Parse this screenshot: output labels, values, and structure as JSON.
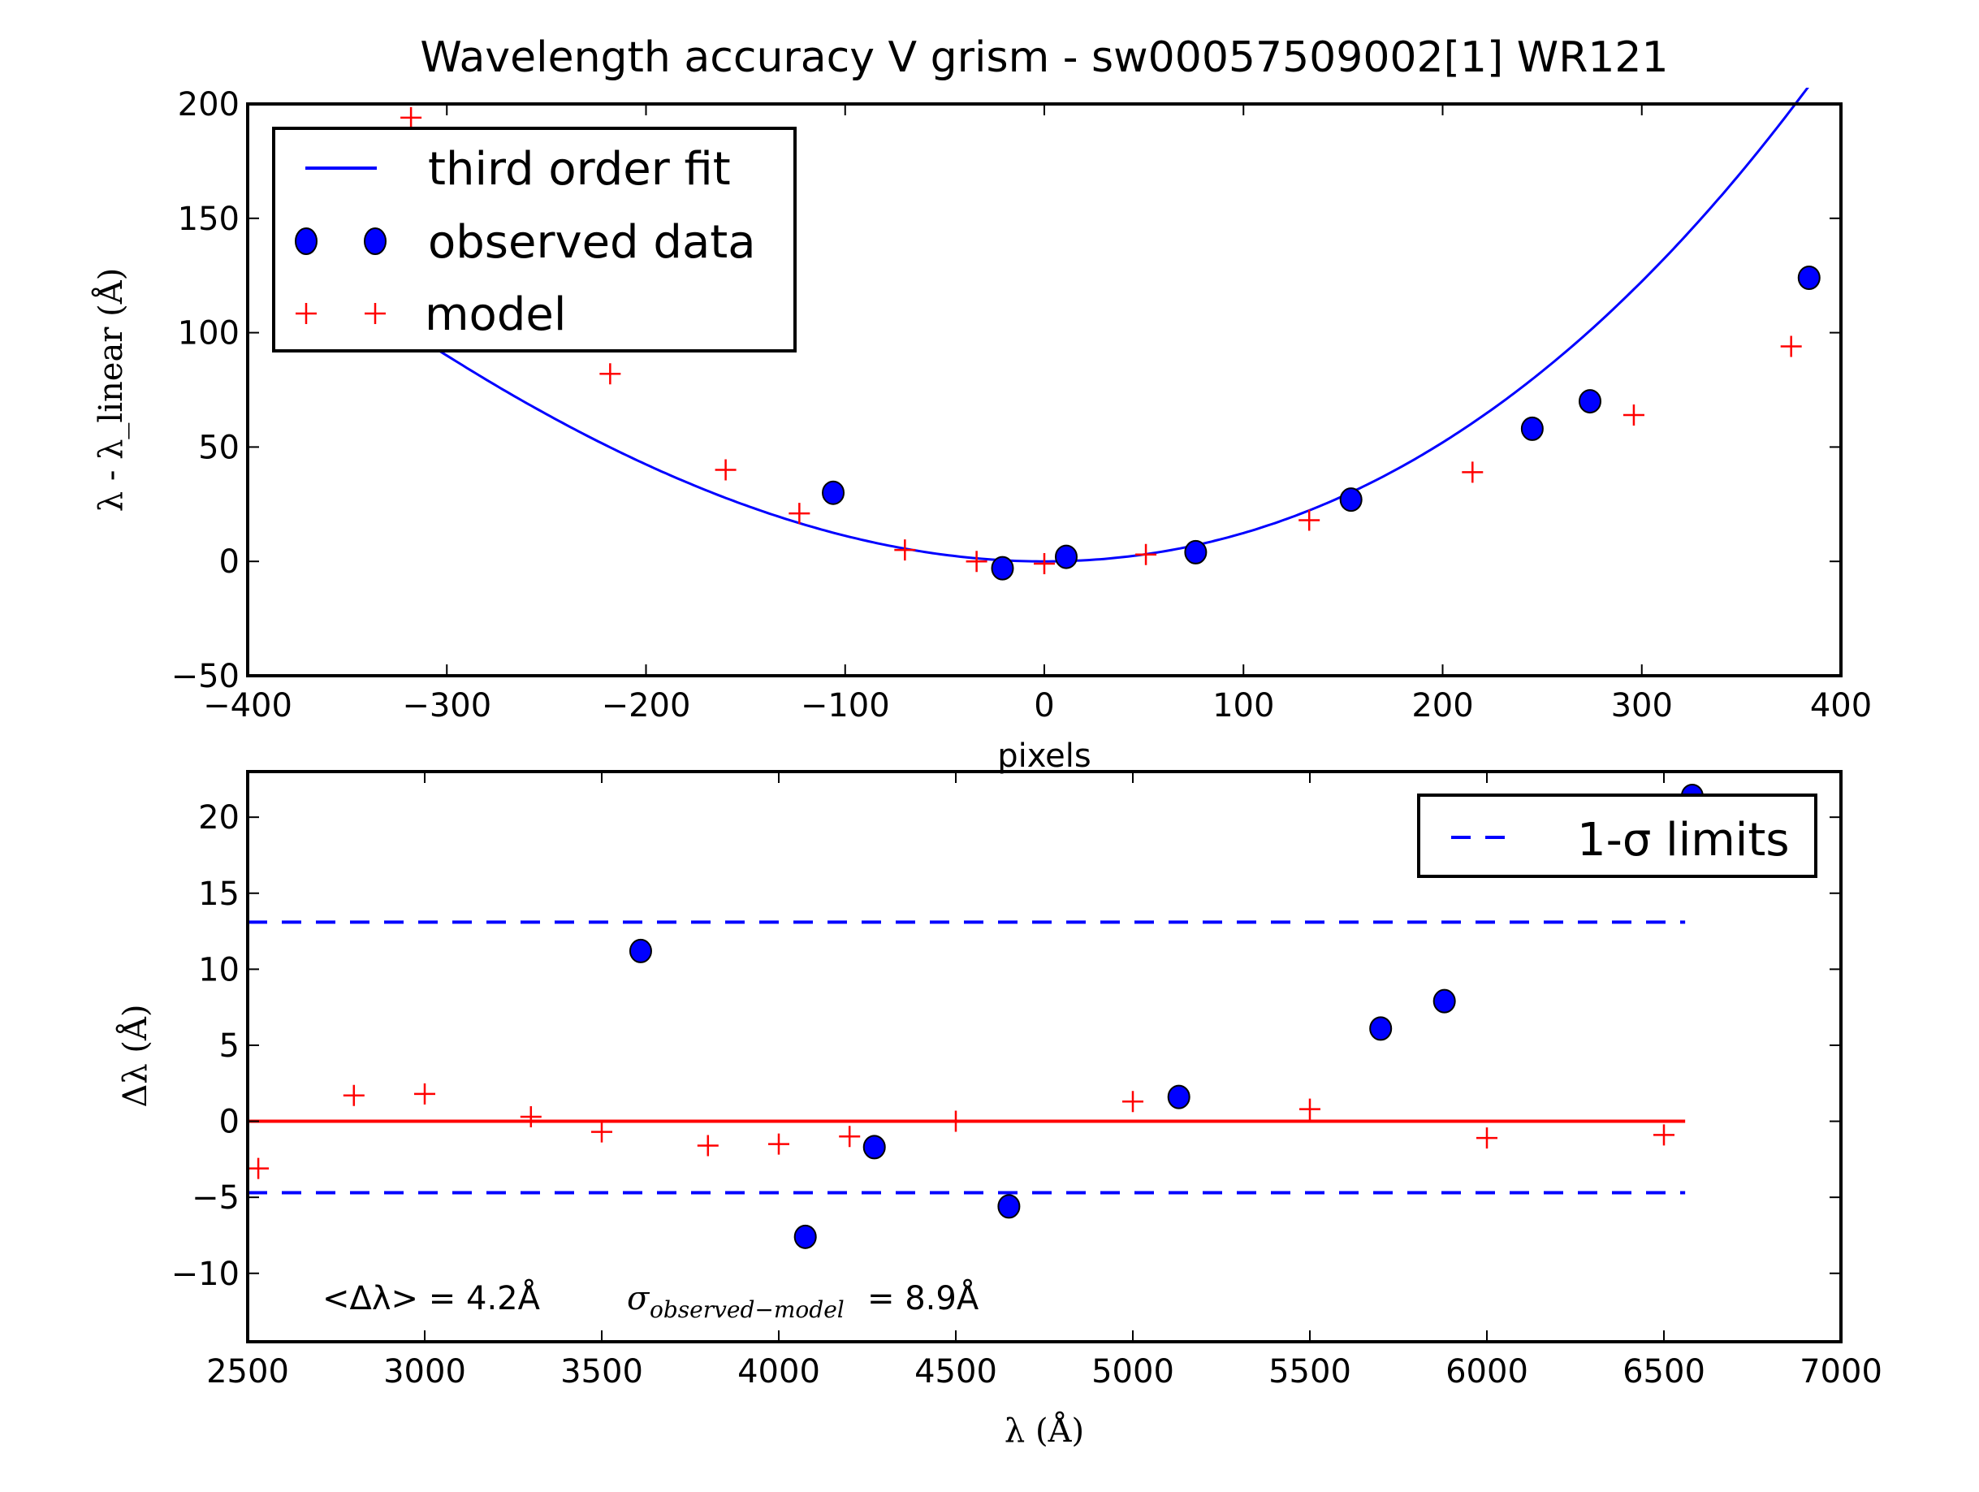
{
  "chart_data": [
    {
      "type": "scatter",
      "title": "Wavelength accuracy V grism - sw00057509002[1] WR121",
      "xlabel": "pixels",
      "ylabel": "λ - λ_linear (Å)",
      "xlim": [
        -400,
        400
      ],
      "ylim": [
        -50,
        200
      ],
      "xticks": [
        "−400",
        "−300",
        "−200",
        "−100",
        "0",
        "100",
        "200",
        "300",
        "400"
      ],
      "xtick_values": [
        -400,
        -300,
        -200,
        -100,
        0,
        100,
        200,
        300,
        400
      ],
      "yticks": [
        "−50",
        "0",
        "50",
        "100",
        "150",
        "200"
      ],
      "ytick_values": [
        -50,
        0,
        50,
        100,
        150,
        200
      ],
      "legend": {
        "placement": "top-left",
        "entries": [
          "third order fit",
          "observed data",
          "model"
        ]
      },
      "fit_curve": {
        "name": "third order fit",
        "color": "#0000ff",
        "x_range": [
          -318,
          385
        ],
        "coeffs": [
          0,
          0.0,
          0.00118,
          6e-07
        ]
      },
      "series": [
        {
          "name": "observed data",
          "marker": "circle",
          "color": "#0000ff",
          "x": [
            -106,
            -21,
            11,
            76,
            154,
            245,
            274,
            384
          ],
          "y": [
            30,
            -3,
            2,
            4,
            27,
            58,
            70,
            124
          ]
        },
        {
          "name": "model",
          "marker": "plus",
          "color": "#ff0000",
          "x": [
            -318,
            -218,
            -160,
            -123,
            -70,
            -34,
            0,
            51,
            133,
            215,
            296,
            375
          ],
          "y": [
            194,
            82,
            40,
            21,
            5,
            0,
            -1,
            3,
            18,
            39,
            64,
            94
          ]
        }
      ]
    },
    {
      "type": "scatter",
      "title": "",
      "xlabel": "λ (Å)",
      "ylabel": "Δλ (Å)",
      "xlim": [
        2500,
        7000
      ],
      "ylim": [
        -14.5,
        23
      ],
      "xticks": [
        "2500",
        "3000",
        "3500",
        "4000",
        "4500",
        "5000",
        "5500",
        "6000",
        "6500",
        "7000"
      ],
      "xtick_values": [
        2500,
        3000,
        3500,
        4000,
        4500,
        5000,
        5500,
        6000,
        6500,
        7000
      ],
      "yticks": [
        "−10",
        "−5",
        "0",
        "5",
        "10",
        "15",
        "20"
      ],
      "ytick_values": [
        -10,
        -5,
        0,
        5,
        10,
        15,
        20
      ],
      "legend": {
        "placement": "top-right",
        "entries": [
          "1-σ limits"
        ]
      },
      "reference_lines": [
        {
          "name": "zero",
          "y": 0,
          "x_range": [
            2500,
            6560
          ],
          "color": "#ff0000",
          "style": "solid"
        },
        {
          "name": "upper 1-σ",
          "y": 13.1,
          "x_range": [
            2500,
            6560
          ],
          "color": "#0000ff",
          "style": "dashed"
        },
        {
          "name": "lower 1-σ",
          "y": -4.7,
          "x_range": [
            2500,
            6560
          ],
          "color": "#0000ff",
          "style": "dashed"
        }
      ],
      "series": [
        {
          "name": "observed data",
          "marker": "circle",
          "color": "#0000ff",
          "x": [
            3610,
            4075,
            4270,
            4650,
            5130,
            5700,
            5880,
            6580
          ],
          "y": [
            11.2,
            -7.6,
            -1.7,
            -5.6,
            1.6,
            6.1,
            7.9,
            21.4
          ]
        },
        {
          "name": "model",
          "marker": "plus",
          "color": "#ff0000",
          "x": [
            2530,
            2800,
            3000,
            3300,
            3500,
            3800,
            4000,
            4200,
            4500,
            5000,
            5500,
            6000,
            6500
          ],
          "y": [
            -3.1,
            1.7,
            1.8,
            0.3,
            -0.7,
            -1.6,
            -1.5,
            -1.0,
            0.0,
            1.3,
            0.8,
            -1.1,
            -0.9
          ]
        }
      ],
      "annotation": {
        "mean_label": "<Δλ> = 4.2Å",
        "sigma_symbol": "σ",
        "sigma_subscript": "observed−model",
        "sigma_value": "= 8.9Å"
      }
    }
  ]
}
